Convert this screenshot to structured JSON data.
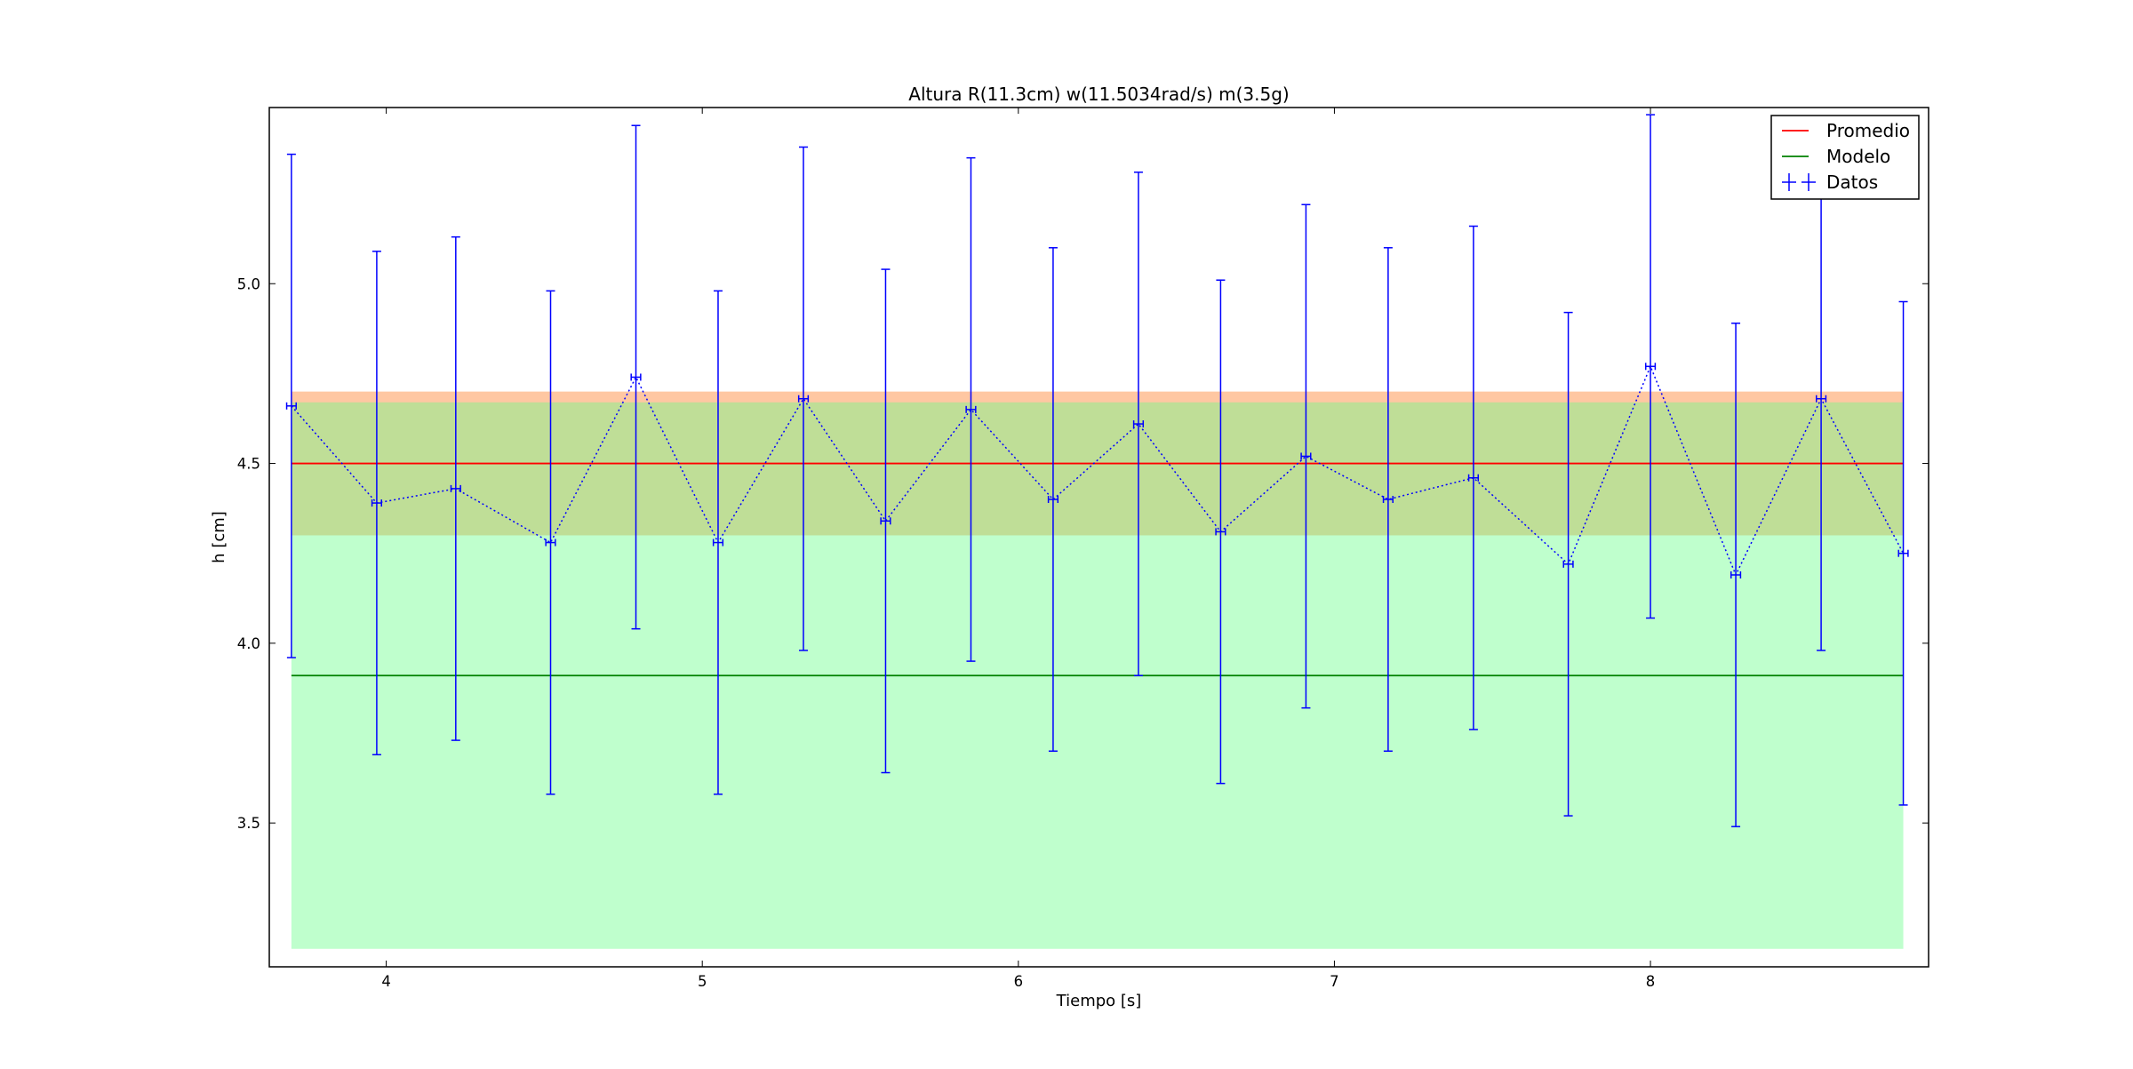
{
  "chart_data": {
    "type": "scatter",
    "title": "Altura R(11.3cm) w(11.5034rad/s) m(3.5g)",
    "xlabel": "Tiempo [s]",
    "ylabel": "h [cm]",
    "xlim": [
      3.63,
      8.88
    ],
    "ylim": [
      3.1,
      5.49
    ],
    "x_ticks": [
      4,
      5,
      6,
      7,
      8
    ],
    "x_tick_labels": [
      "4",
      "5",
      "6",
      "7",
      "8"
    ],
    "y_ticks": [
      3.5,
      4.0,
      4.5,
      5.0
    ],
    "y_tick_labels": [
      "3.5",
      "4.0",
      "4.5",
      "5.0"
    ],
    "grid": false,
    "legend_position": "top-right",
    "bands": [
      {
        "name": "Promedio band",
        "y_low": 4.3,
        "y_high": 4.7,
        "x_start": 3.7,
        "x_end": 8.8,
        "color": "#ff9955",
        "opacity": 0.55
      },
      {
        "name": "Modelo band",
        "y_low": 3.15,
        "y_high": 4.67,
        "x_start": 3.7,
        "x_end": 8.8,
        "color": "#66ff88",
        "opacity": 0.42
      }
    ],
    "series": [
      {
        "name": "Promedio",
        "kind": "hline",
        "y": 4.5,
        "x_start": 3.7,
        "x_end": 8.8,
        "color": "#ff0000"
      },
      {
        "name": "Modelo",
        "kind": "hline",
        "y": 3.91,
        "x_start": 3.7,
        "x_end": 8.8,
        "color": "#008000"
      },
      {
        "name": "Datos",
        "kind": "errorbar",
        "color": "#0000ff",
        "x": [
          3.7,
          3.97,
          4.22,
          4.52,
          4.79,
          5.05,
          5.32,
          5.58,
          5.85,
          6.11,
          6.38,
          6.64,
          6.91,
          7.17,
          7.44,
          7.74,
          8.0,
          8.27,
          8.54,
          8.8
        ],
        "y": [
          4.66,
          4.39,
          4.43,
          4.28,
          4.74,
          4.28,
          4.68,
          4.34,
          4.65,
          4.4,
          4.61,
          4.31,
          4.52,
          4.4,
          4.46,
          4.22,
          4.77,
          4.19,
          4.68,
          4.25
        ],
        "yerr": [
          0.7,
          0.7,
          0.7,
          0.7,
          0.7,
          0.7,
          0.7,
          0.7,
          0.7,
          0.7,
          0.7,
          0.7,
          0.7,
          0.7,
          0.7,
          0.7,
          0.7,
          0.7,
          0.7,
          0.7
        ],
        "xerr": 0.015
      }
    ]
  }
}
